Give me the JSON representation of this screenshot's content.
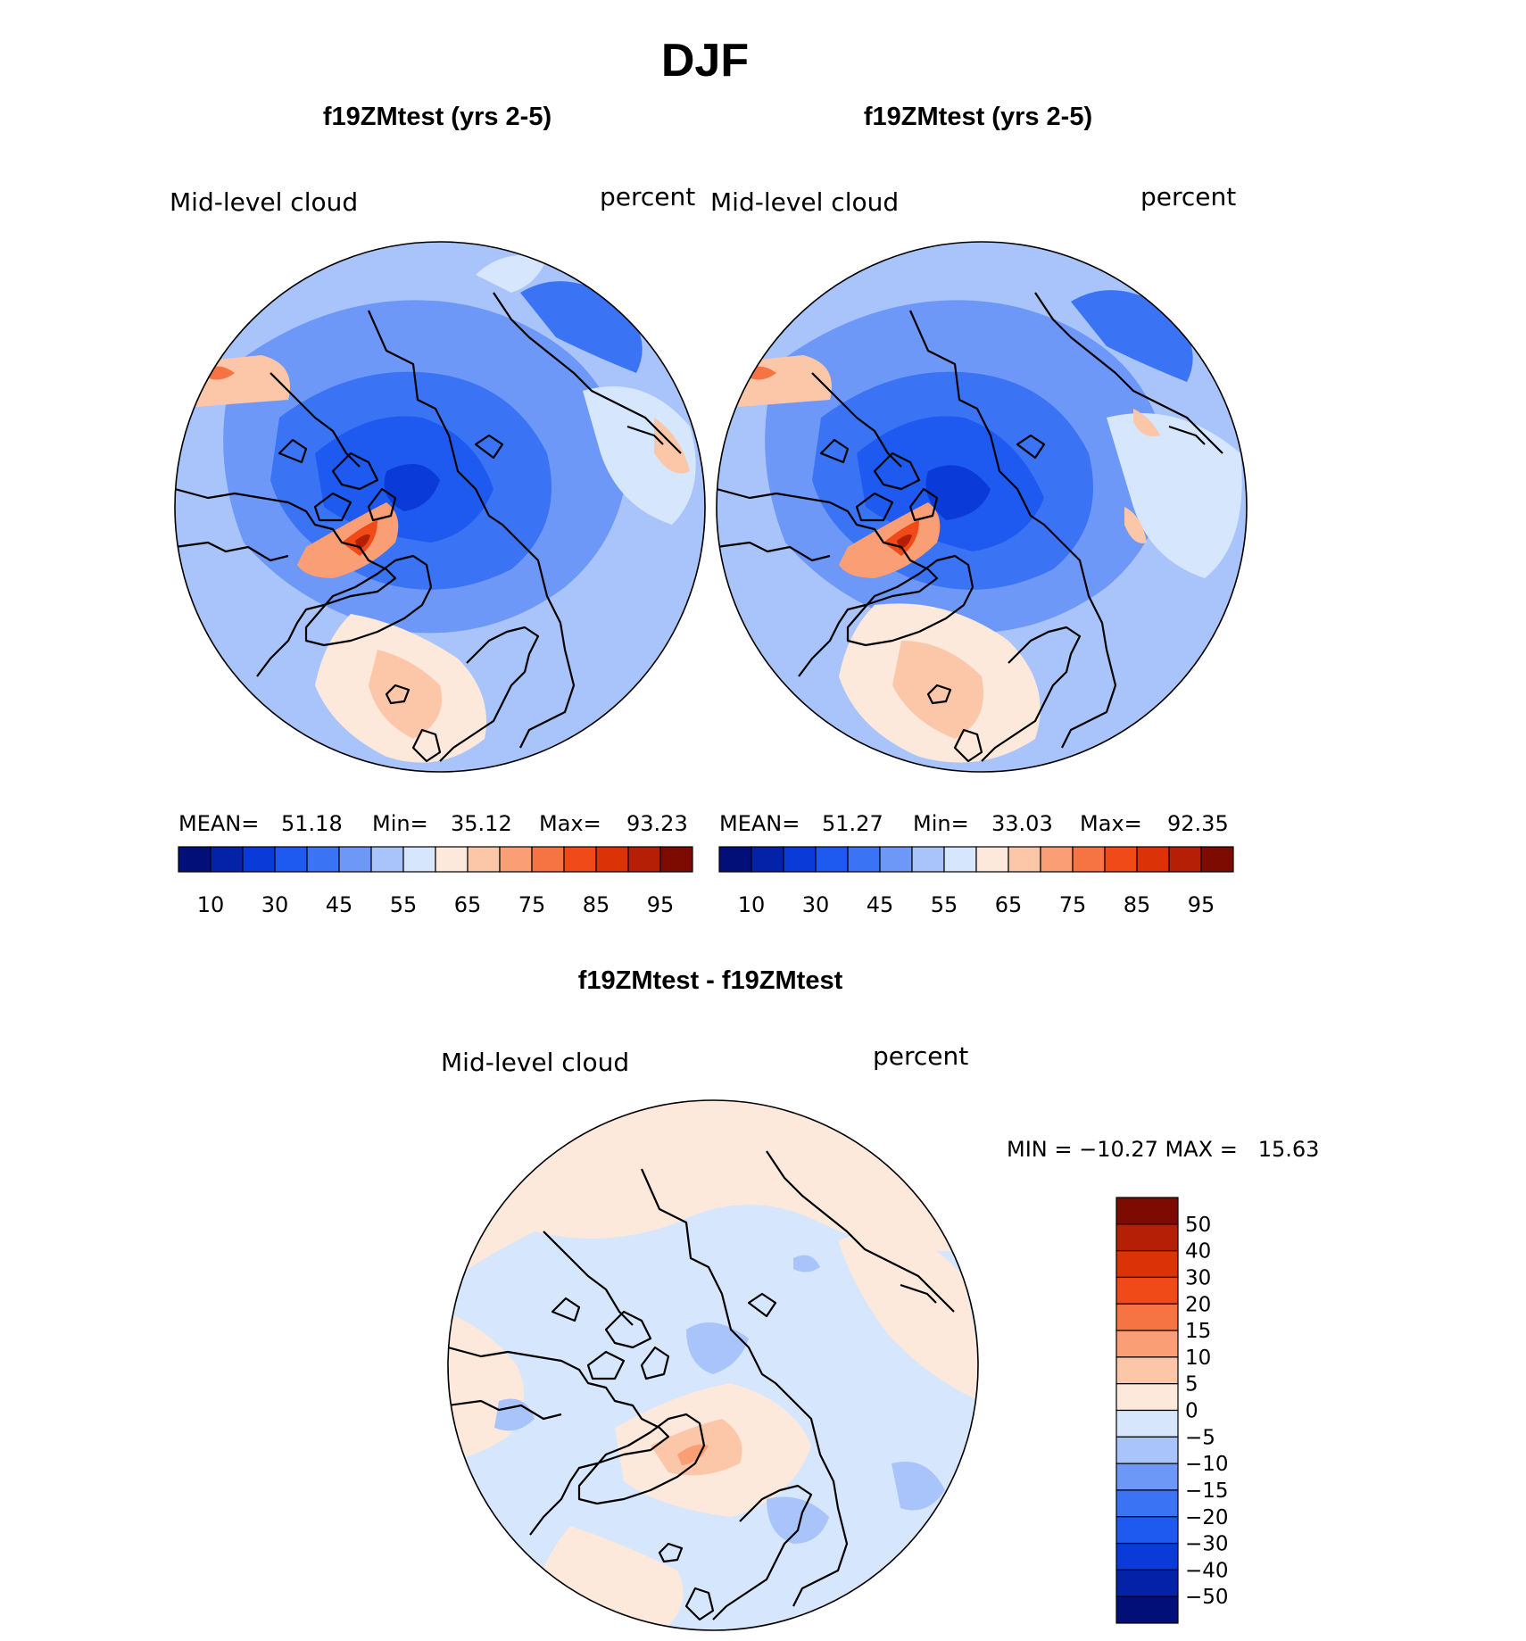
{
  "title": "DJF",
  "colors": {
    "abs_scale": [
      "#020f78",
      "#0422a8",
      "#0a3ad8",
      "#1e5af0",
      "#3a74f5",
      "#6e98f7",
      "#a9c4fb",
      "#d6e6fd",
      "#fde8dc",
      "#fcc6a8",
      "#f99e75",
      "#f67443",
      "#ef4a18",
      "#db3208",
      "#b51f05",
      "#7e0b02"
    ],
    "diff_scale": [
      "#020f78",
      "#0422a8",
      "#0a3ad8",
      "#1e5af0",
      "#3a74f5",
      "#6e98f7",
      "#a9c4fb",
      "#d6e6fd",
      "#fde8dc",
      "#fcc6a8",
      "#f99e75",
      "#f67443",
      "#ef4a18",
      "#db3208",
      "#b51f05",
      "#7e0b02"
    ]
  },
  "panels": [
    {
      "id": "left",
      "case_title": "f19ZMtest (yrs 2-5)",
      "variable": "Mid-level cloud",
      "units": "percent",
      "stats": {
        "mean_label": "MEAN=",
        "mean": "51.18",
        "min_label": "Min=",
        "min": "35.12",
        "max_label": "Max=",
        "max": "93.23"
      }
    },
    {
      "id": "right",
      "case_title": "f19ZMtest (yrs 2-5)",
      "variable": "Mid-level cloud",
      "units": "percent",
      "stats": {
        "mean_label": "MEAN=",
        "mean": "51.27",
        "min_label": "Min=",
        "min": "33.03",
        "max_label": "Max=",
        "max": "92.35"
      }
    }
  ],
  "diff_panel": {
    "title": "f19ZMtest - f19ZMtest",
    "variable": "Mid-level cloud",
    "units": "percent",
    "minmax": "MIN = −10.27 MAX =   15.63"
  },
  "chart_data": [
    {
      "type": "heatmap",
      "projection": "north polar stereographic",
      "title": "f19ZMtest (yrs 2-5)",
      "variable": "Mid-level cloud",
      "units": "percent",
      "mean": 51.18,
      "min": 35.12,
      "max": 93.23,
      "colorbar_labels": [
        "10",
        "30",
        "45",
        "55",
        "65",
        "75",
        "85",
        "95"
      ],
      "levels": [
        5,
        10,
        15,
        20,
        25,
        30,
        35,
        40,
        45,
        50,
        55,
        60,
        65,
        70,
        75,
        80,
        85,
        90,
        95
      ]
    },
    {
      "type": "heatmap",
      "projection": "north polar stereographic",
      "title": "f19ZMtest (yrs 2-5)",
      "variable": "Mid-level cloud",
      "units": "percent",
      "mean": 51.27,
      "min": 33.03,
      "max": 92.35,
      "colorbar_labels": [
        "10",
        "30",
        "45",
        "55",
        "65",
        "75",
        "85",
        "95"
      ]
    },
    {
      "type": "heatmap",
      "projection": "north polar stereographic",
      "title": "f19ZMtest - f19ZMtest",
      "variable": "Mid-level cloud",
      "units": "percent",
      "min": -10.27,
      "max": 15.63,
      "colorbar_labels": [
        "50",
        "40",
        "30",
        "20",
        "15",
        "10",
        "5",
        "0",
        "−5",
        "−10",
        "−15",
        "−20",
        "−30",
        "−40",
        "−50"
      ]
    }
  ]
}
